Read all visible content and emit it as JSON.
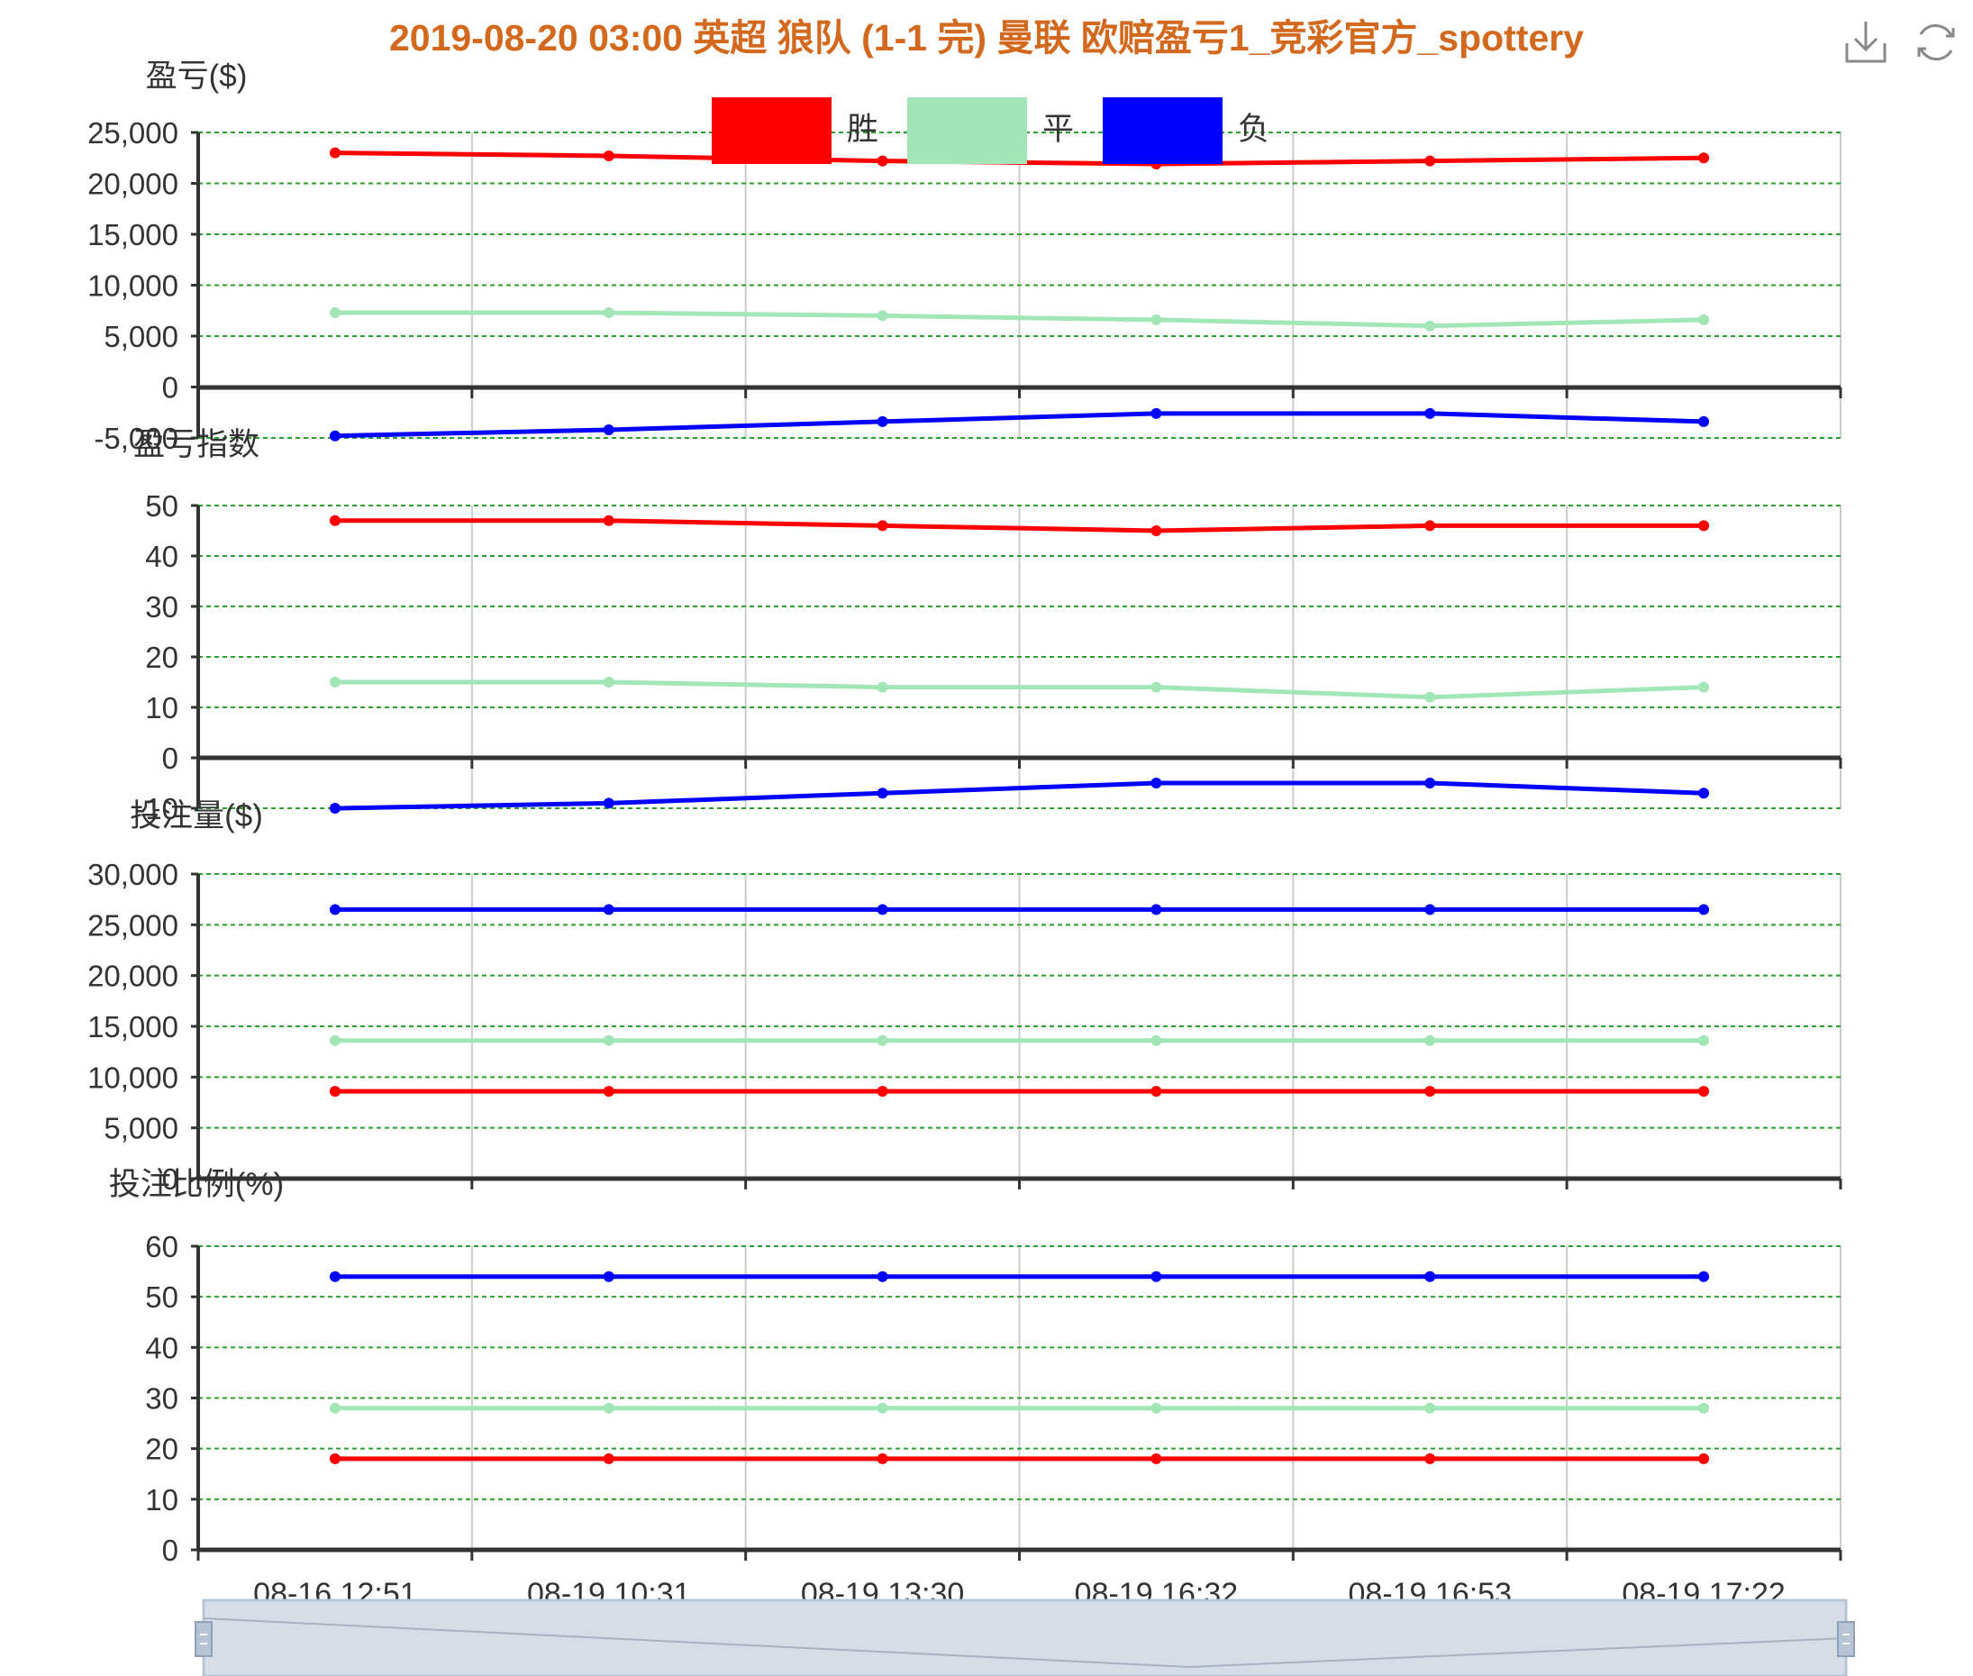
{
  "title": "2019-08-20 03:00 英超 狼队 (1-1 完) 曼联 欧赔盈亏1_竞彩官方_spottery",
  "toolbox": {
    "save_icon": "download-icon",
    "restore_icon": "refresh-icon"
  },
  "legend": {
    "items": [
      {
        "label": "胜",
        "color": "#ff0000"
      },
      {
        "label": "平",
        "color": "#a2e6b8"
      },
      {
        "label": "负",
        "color": "#0000ff"
      }
    ]
  },
  "chart_data": [
    {
      "type": "line",
      "ylabel": "盈亏($)",
      "x": [
        "08-16 12:51",
        "08-19 10:31",
        "08-19 13:30",
        "08-19 16:32",
        "08-19 16:53",
        "08-19 17:22"
      ],
      "yticks": [
        "25,000",
        "20,000",
        "15,000",
        "10,000",
        "5,000",
        "0",
        "-5,000"
      ],
      "ylim": [
        -5000,
        25000
      ],
      "series": [
        {
          "name": "胜",
          "color": "#ff0000",
          "values": [
            23000,
            22700,
            22200,
            21900,
            22200,
            22500
          ]
        },
        {
          "name": "平",
          "color": "#a2e6b8",
          "values": [
            7300,
            7300,
            7000,
            6600,
            6000,
            6600
          ]
        },
        {
          "name": "负",
          "color": "#0000ff",
          "values": [
            -4800,
            -4200,
            -3400,
            -2600,
            -2600,
            -3400
          ]
        }
      ]
    },
    {
      "type": "line",
      "ylabel": "盈亏指数",
      "x": [
        "08-16 12:51",
        "08-19 10:31",
        "08-19 13:30",
        "08-19 16:32",
        "08-19 16:53",
        "08-19 17:22"
      ],
      "yticks": [
        "50",
        "40",
        "30",
        "20",
        "10",
        "0",
        "-10"
      ],
      "ylim": [
        -10,
        50
      ],
      "series": [
        {
          "name": "胜",
          "color": "#ff0000",
          "values": [
            47,
            47,
            46,
            45,
            46,
            46
          ]
        },
        {
          "name": "平",
          "color": "#a2e6b8",
          "values": [
            15,
            15,
            14,
            14,
            12,
            14
          ]
        },
        {
          "name": "负",
          "color": "#0000ff",
          "values": [
            -10,
            -9,
            -7,
            -5,
            -5,
            -7
          ]
        }
      ]
    },
    {
      "type": "line",
      "ylabel": "投注量($)",
      "x": [
        "08-16 12:51",
        "08-19 10:31",
        "08-19 13:30",
        "08-19 16:32",
        "08-19 16:53",
        "08-19 17:22"
      ],
      "yticks": [
        "30,000",
        "25,000",
        "20,000",
        "15,000",
        "10,000",
        "5,000",
        "0"
      ],
      "ylim": [
        0,
        30000
      ],
      "series": [
        {
          "name": "胜",
          "color": "#ff0000",
          "values": [
            8600,
            8600,
            8600,
            8600,
            8600,
            8600
          ]
        },
        {
          "name": "平",
          "color": "#a2e6b8",
          "values": [
            13600,
            13600,
            13600,
            13600,
            13600,
            13600
          ]
        },
        {
          "name": "负",
          "color": "#0000ff",
          "values": [
            26500,
            26500,
            26500,
            26500,
            26500,
            26500
          ]
        }
      ]
    },
    {
      "type": "line",
      "ylabel": "投注比例(%)",
      "x": [
        "08-16 12:51",
        "08-19 10:31",
        "08-19 13:30",
        "08-19 16:32",
        "08-19 16:53",
        "08-19 17:22"
      ],
      "xticks": [
        "08-16 12:51",
        "08-19 10:31",
        "08-19 13:30",
        "08-19 16:32",
        "08-19 16:53",
        "08-19 17:22"
      ],
      "yticks": [
        "60",
        "50",
        "40",
        "30",
        "20",
        "10",
        "0"
      ],
      "ylim": [
        0,
        60
      ],
      "series": [
        {
          "name": "胜",
          "color": "#ff0000",
          "values": [
            18,
            18,
            18,
            18,
            18,
            18
          ]
        },
        {
          "name": "平",
          "color": "#a2e6b8",
          "values": [
            28,
            28,
            28,
            28,
            28,
            28
          ]
        },
        {
          "name": "负",
          "color": "#0000ff",
          "values": [
            54,
            54,
            54,
            54,
            54,
            54
          ]
        }
      ]
    }
  ],
  "datazoom": {
    "start": 0,
    "end": 100
  }
}
